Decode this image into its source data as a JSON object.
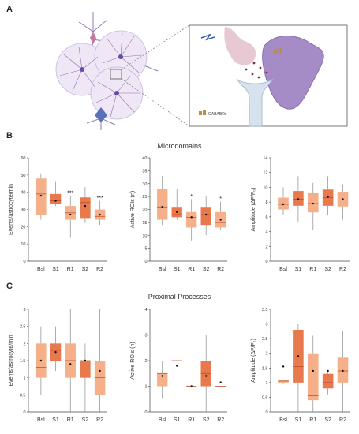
{
  "panels": {
    "a": "A",
    "b": "B",
    "c": "C"
  },
  "section_titles": {
    "b": "Microdomains",
    "c": "Proximal Processes"
  },
  "illustration": {
    "receptor_label": "GABABRs"
  },
  "colors": {
    "light": "#f5b08a",
    "dark": "#e8794c",
    "edge": "#8a8a8a",
    "neuron": "#6b4aa0",
    "astro": "#8f7ab8",
    "glia": "#c9b3dc",
    "post": "#a58cc7",
    "pre": "#e7c9d4",
    "dendrite": "#b8cbe0"
  },
  "chart_data": [
    {
      "type": "box",
      "id": "b1",
      "title": "",
      "ylabel": "Events/astrocyte/min",
      "ylim": [
        0,
        60
      ],
      "yticks": [
        0,
        10,
        20,
        30,
        40,
        50,
        60
      ],
      "categories": [
        "Bsl",
        "S1",
        "R1",
        "S2",
        "R2"
      ],
      "series": [
        {
          "category": "Bsl",
          "min": 24,
          "q1": 27,
          "median": 39,
          "q3": 48,
          "max": 51,
          "mean": 38,
          "color": "light",
          "sig": ""
        },
        {
          "category": "S1",
          "min": 32,
          "q1": 33,
          "median": 35,
          "q3": 39,
          "max": 46,
          "mean": 35,
          "color": "dark",
          "sig": ""
        },
        {
          "category": "R1",
          "min": 14,
          "q1": 24,
          "median": 28,
          "q3": 32,
          "max": 38,
          "mean": 27,
          "color": "light",
          "sig": "***"
        },
        {
          "category": "S2",
          "min": 22,
          "q1": 25,
          "median": 34,
          "q3": 37,
          "max": 43,
          "mean": 32,
          "color": "dark",
          "sig": ""
        },
        {
          "category": "R2",
          "min": 21,
          "q1": 24,
          "median": 26,
          "q3": 30,
          "max": 35,
          "mean": 27,
          "color": "light",
          "sig": "***"
        }
      ]
    },
    {
      "type": "box",
      "id": "b2",
      "title": "",
      "ylabel": "Active ROIs (n)",
      "ylim": [
        0,
        40
      ],
      "yticks": [
        0,
        5,
        10,
        15,
        20,
        25,
        30,
        35,
        40
      ],
      "categories": [
        "Bsl",
        "S1",
        "R1",
        "S2",
        "R2"
      ],
      "series": [
        {
          "category": "Bsl",
          "min": 14,
          "q1": 16,
          "median": 21,
          "q3": 28,
          "max": 33,
          "mean": 21,
          "color": "light",
          "sig": ""
        },
        {
          "category": "S1",
          "min": 16,
          "q1": 17,
          "median": 18,
          "q3": 21,
          "max": 28,
          "mean": 19,
          "color": "dark",
          "sig": ""
        },
        {
          "category": "R1",
          "min": 8,
          "q1": 13,
          "median": 17,
          "q3": 19,
          "max": 24,
          "mean": 17,
          "color": "light",
          "sig": "*"
        },
        {
          "category": "S2",
          "min": 10,
          "q1": 14,
          "median": 18,
          "q3": 21,
          "max": 25,
          "mean": 18,
          "color": "dark",
          "sig": ""
        },
        {
          "category": "R2",
          "min": 12,
          "q1": 13,
          "median": 15,
          "q3": 19,
          "max": 23,
          "mean": 16,
          "color": "light",
          "sig": "*"
        }
      ]
    },
    {
      "type": "box",
      "id": "b3",
      "title": "",
      "ylabel": "Amplitude (ΔF/F₀)",
      "ylim": [
        0,
        14
      ],
      "yticks": [
        0,
        2,
        4,
        6,
        8,
        10,
        12,
        14
      ],
      "categories": [
        "Bsl",
        "S1",
        "R1",
        "S2",
        "R2"
      ],
      "series": [
        {
          "category": "Bsl",
          "min": 6.2,
          "q1": 7.0,
          "median": 7.7,
          "q3": 8.6,
          "max": 10.0,
          "mean": 7.7,
          "color": "light",
          "sig": ""
        },
        {
          "category": "S1",
          "min": 5.3,
          "q1": 7.5,
          "median": 8.4,
          "q3": 9.5,
          "max": 11.5,
          "mean": 8.4,
          "color": "dark",
          "sig": ""
        },
        {
          "category": "R1",
          "min": 4.2,
          "q1": 6.6,
          "median": 7.8,
          "q3": 9.3,
          "max": 10.6,
          "mean": 7.8,
          "color": "light",
          "sig": ""
        },
        {
          "category": "S2",
          "min": 6.2,
          "q1": 7.5,
          "median": 8.6,
          "q3": 9.7,
          "max": 11.5,
          "mean": 8.7,
          "color": "dark",
          "sig": ""
        },
        {
          "category": "R2",
          "min": 5.6,
          "q1": 7.4,
          "median": 8.3,
          "q3": 9.4,
          "max": 10.4,
          "mean": 8.4,
          "color": "light",
          "sig": ""
        }
      ]
    },
    {
      "type": "box",
      "id": "c1",
      "title": "",
      "ylabel": "Events/astrocyte/min",
      "ylim": [
        0,
        3
      ],
      "yticks": [
        0,
        0.5,
        1,
        1.5,
        2,
        2.5,
        3
      ],
      "categories": [
        "Bsl",
        "S1",
        "R1",
        "S2",
        "R2"
      ],
      "series": [
        {
          "category": "Bsl",
          "min": 0.5,
          "q1": 1.0,
          "median": 1.3,
          "q3": 2.0,
          "max": 2.5,
          "mean": 1.5,
          "color": "light",
          "sig": ""
        },
        {
          "category": "S1",
          "min": 1.2,
          "q1": 1.5,
          "median": 1.8,
          "q3": 2.0,
          "max": 2.5,
          "mean": 1.75,
          "color": "dark",
          "sig": ""
        },
        {
          "category": "R1",
          "min": 0,
          "q1": 1.0,
          "median": 1.5,
          "q3": 2.0,
          "max": 3.0,
          "mean": 1.4,
          "color": "light",
          "sig": ""
        },
        {
          "category": "S2",
          "min": 0,
          "q1": 1.0,
          "median": 1.5,
          "q3": 1.5,
          "max": 2.0,
          "mean": 1.5,
          "color": "dark",
          "sig": ""
        },
        {
          "category": "R2",
          "min": 0,
          "q1": 0.5,
          "median": 1.0,
          "q3": 1.5,
          "max": 3.0,
          "mean": 1.2,
          "color": "light",
          "sig": ""
        }
      ]
    },
    {
      "type": "box",
      "id": "c2",
      "title": "",
      "ylabel": "Active ROIs (n)",
      "ylim": [
        0,
        4
      ],
      "yticks": [
        0,
        1,
        2,
        3,
        4
      ],
      "categories": [
        "Bsl",
        "S1",
        "R1",
        "S2",
        "R2"
      ],
      "series": [
        {
          "category": "Bsl",
          "min": 0.5,
          "q1": 1.0,
          "median": 1.5,
          "q3": 1.5,
          "max": 2.0,
          "mean": 1.4,
          "color": "light",
          "sig": ""
        },
        {
          "category": "S1",
          "min": 2.0,
          "q1": 2.0,
          "median": 2.0,
          "q3": 2.0,
          "max": 2.0,
          "mean": 1.8,
          "color": "dark",
          "sig": ""
        },
        {
          "category": "R1",
          "min": 1.0,
          "q1": 1.0,
          "median": 1.0,
          "q3": 1.0,
          "max": 1.0,
          "mean": 1.0,
          "color": "light",
          "sig": ""
        },
        {
          "category": "S2",
          "min": 0,
          "q1": 1.0,
          "median": 1.5,
          "q3": 2.0,
          "max": 3.0,
          "mean": 1.4,
          "color": "dark",
          "sig": ""
        },
        {
          "category": "R2",
          "min": 1.0,
          "q1": 1.0,
          "median": 1.0,
          "q3": 1.0,
          "max": 1.0,
          "mean": 1.15,
          "color": "light",
          "sig": ""
        }
      ]
    },
    {
      "type": "box",
      "id": "c3",
      "title": "",
      "ylabel": "Amplitude (ΔF/F₀)",
      "ylim": [
        0,
        3.5
      ],
      "yticks": [
        0,
        0.5,
        1,
        1.5,
        2,
        2.5,
        3,
        3.5
      ],
      "categories": [
        "Bsl",
        "S1",
        "R1",
        "S2",
        "R2"
      ],
      "series": [
        {
          "category": "Bsl",
          "min": 0.95,
          "q1": 1.0,
          "median": 1.05,
          "q3": 1.1,
          "max": 1.1,
          "mean": 1.55,
          "color": "light",
          "sig": ""
        },
        {
          "category": "S1",
          "min": 0,
          "q1": 1.0,
          "median": 1.55,
          "q3": 2.8,
          "max": 3.0,
          "mean": 1.9,
          "color": "dark",
          "sig": ""
        },
        {
          "category": "R1",
          "min": 0,
          "q1": 0.4,
          "median": 0.55,
          "q3": 2.0,
          "max": 2.6,
          "mean": 1.4,
          "color": "light",
          "sig": ""
        },
        {
          "category": "S2",
          "min": 0.6,
          "q1": 0.8,
          "median": 1.0,
          "q3": 1.3,
          "max": 1.4,
          "mean": 1.4,
          "color": "dark",
          "sig": ""
        },
        {
          "category": "R2",
          "min": 0,
          "q1": 1.0,
          "median": 1.4,
          "q3": 1.85,
          "max": 2.75,
          "mean": 1.4,
          "color": "light",
          "sig": ""
        }
      ]
    }
  ]
}
